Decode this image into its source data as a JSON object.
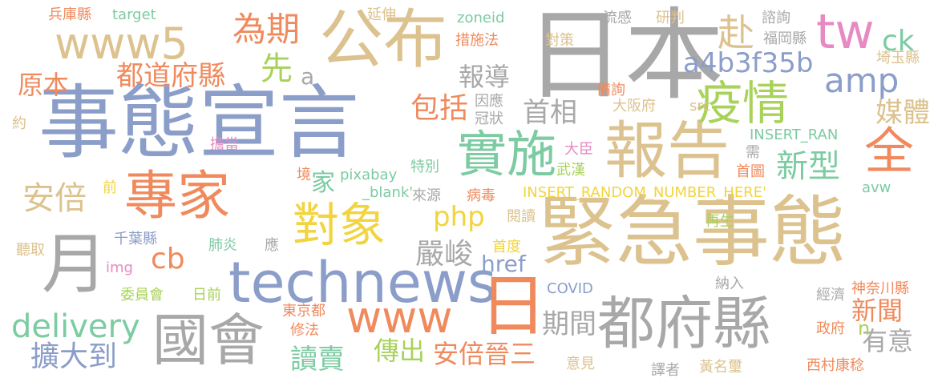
{
  "palette": {
    "tan": "#dcc28e",
    "orange": "#f08a5d",
    "blue": "#8b9dc9",
    "green": "#7ccba2",
    "gray": "#a8a8a8",
    "lime": "#a8d25a",
    "yellow": "#f2d43e",
    "pink": "#e78ac3",
    "background": "#ffffff"
  },
  "words": [
    {
      "text": "日本",
      "color": "gray"
    },
    {
      "text": "事態宣言",
      "color": "blue"
    },
    {
      "text": "緊急事態",
      "color": "tan"
    },
    {
      "text": "公布",
      "color": "tan"
    },
    {
      "text": "報告",
      "color": "tan"
    },
    {
      "text": "專家",
      "color": "orange"
    },
    {
      "text": "都府縣",
      "color": "gray"
    },
    {
      "text": "technews",
      "color": "blue"
    },
    {
      "text": "國會",
      "color": "gray"
    },
    {
      "text": "日",
      "color": "orange"
    },
    {
      "text": "月",
      "color": "gray"
    },
    {
      "text": "www5",
      "color": "tan"
    },
    {
      "text": "疫情",
      "color": "lime"
    },
    {
      "text": "對象",
      "color": "yellow"
    },
    {
      "text": "實施",
      "color": "green"
    },
    {
      "text": "tw",
      "color": "pink"
    },
    {
      "text": "www",
      "color": "orange"
    },
    {
      "text": "全",
      "color": "orange"
    },
    {
      "text": "delivery",
      "color": "green"
    },
    {
      "text": "為期",
      "color": "orange"
    },
    {
      "text": "赴",
      "color": "tan"
    },
    {
      "text": "amp",
      "color": "blue"
    },
    {
      "text": "新型",
      "color": "green"
    },
    {
      "text": "安倍",
      "color": "tan"
    },
    {
      "text": "ck",
      "color": "green"
    },
    {
      "text": "a4b3f35b",
      "color": "blue"
    },
    {
      "text": "都道府縣",
      "color": "orange"
    },
    {
      "text": "先",
      "color": "lime"
    },
    {
      "text": "php",
      "color": "yellow"
    },
    {
      "text": "cb",
      "color": "orange"
    },
    {
      "text": "href",
      "color": "blue"
    },
    {
      "text": "期間",
      "color": "gray"
    },
    {
      "text": "新聞",
      "color": "orange"
    },
    {
      "text": "首相",
      "color": "gray"
    },
    {
      "text": "媒體",
      "color": "tan"
    },
    {
      "text": "報導",
      "color": "gray"
    },
    {
      "text": "包括",
      "color": "orange"
    },
    {
      "text": "嚴峻",
      "color": "gray"
    },
    {
      "text": "安倍晉三",
      "color": "orange"
    },
    {
      "text": "擴大到",
      "color": "blue"
    },
    {
      "text": "讀賣",
      "color": "green"
    },
    {
      "text": "傳出",
      "color": "lime"
    },
    {
      "text": "有意",
      "color": "gray"
    },
    {
      "text": "原本",
      "color": "orange"
    },
    {
      "text": "a",
      "color": "gray"
    },
    {
      "text": "家",
      "color": "green"
    },
    {
      "text": "n",
      "color": "lime"
    },
    {
      "text": "兵庫縣",
      "color": "orange"
    },
    {
      "text": "target",
      "color": "green"
    },
    {
      "text": "延伸",
      "color": "tan"
    },
    {
      "text": "zoneid",
      "color": "green"
    },
    {
      "text": "流感",
      "color": "gray"
    },
    {
      "text": "研判",
      "color": "tan"
    },
    {
      "text": "諮詢",
      "color": "gray"
    },
    {
      "text": "福岡縣",
      "color": "gray"
    },
    {
      "text": "措施法",
      "color": "orange"
    },
    {
      "text": "對策",
      "color": "tan"
    },
    {
      "text": "埼玉縣",
      "color": "tan"
    },
    {
      "text": "因應",
      "color": "gray"
    },
    {
      "text": "冠狀",
      "color": "gray"
    },
    {
      "text": "備詢",
      "color": "orange"
    },
    {
      "text": "大阪府",
      "color": "tan"
    },
    {
      "text": "src",
      "color": "tan"
    },
    {
      "text": "約",
      "color": "tan"
    },
    {
      "text": "INSERT_RAN",
      "color": "green"
    },
    {
      "text": "擔當",
      "color": "pink"
    },
    {
      "text": "大臣",
      "color": "pink"
    },
    {
      "text": "需",
      "color": "gray"
    },
    {
      "text": "特別",
      "color": "green"
    },
    {
      "text": "武漢",
      "color": "lime"
    },
    {
      "text": "首圖",
      "color": "orange"
    },
    {
      "text": "境",
      "color": "orange"
    },
    {
      "text": "pixabay",
      "color": "green"
    },
    {
      "text": "前",
      "color": "yellow"
    },
    {
      "text": "_blank'",
      "color": "green"
    },
    {
      "text": "來源",
      "color": "gray"
    },
    {
      "text": "病毒",
      "color": "orange"
    },
    {
      "text": "INSERT_RANDOM_NUMBER_HERE'",
      "color": "yellow"
    },
    {
      "text": "avw",
      "color": "green"
    },
    {
      "text": "閱讀",
      "color": "tan"
    },
    {
      "text": "再生",
      "color": "lime"
    },
    {
      "text": "聽取",
      "color": "tan"
    },
    {
      "text": "千葉縣",
      "color": "blue"
    },
    {
      "text": "肺炎",
      "color": "green"
    },
    {
      "text": "應",
      "color": "gray"
    },
    {
      "text": "首度",
      "color": "yellow"
    },
    {
      "text": "img",
      "color": "pink"
    },
    {
      "text": "COVID",
      "color": "blue"
    },
    {
      "text": "委員會",
      "color": "lime"
    },
    {
      "text": "日前",
      "color": "lime"
    },
    {
      "text": "納入",
      "color": "gray"
    },
    {
      "text": "神奈川縣",
      "color": "orange"
    },
    {
      "text": "經濟",
      "color": "gray"
    },
    {
      "text": "東京都",
      "color": "orange"
    },
    {
      "text": "修法",
      "color": "orange"
    },
    {
      "text": "政府",
      "color": "orange"
    },
    {
      "text": "意見",
      "color": "tan"
    },
    {
      "text": "譯者",
      "color": "gray"
    },
    {
      "text": "黃名璽",
      "color": "tan"
    },
    {
      "text": "西村康稔",
      "color": "orange"
    }
  ]
}
